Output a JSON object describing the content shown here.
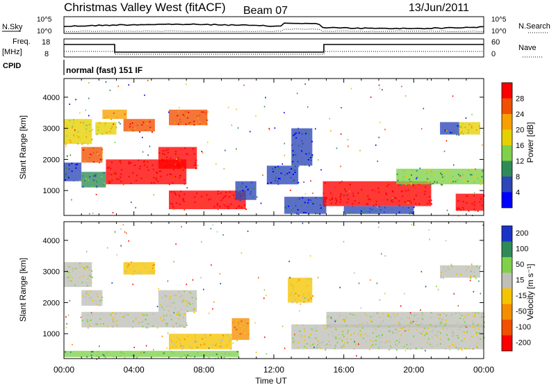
{
  "header": {
    "station": "Christmas Valley West (fitACF)",
    "beam": "Beam 07",
    "date": "13/Jun/2011"
  },
  "panels": {
    "nsky": {
      "label": "N.Sky",
      "ticks": [
        "10^5",
        "10^0"
      ],
      "right_label": "N.Search",
      "right_ticks": [
        "10^5",
        "10^0"
      ]
    },
    "freq": {
      "label_line1": "Freq.",
      "label_line2": "[MHz]",
      "ticks": [
        "18",
        "8"
      ],
      "right_label": "Nave",
      "right_ticks": [
        "60",
        "0"
      ]
    },
    "cpid": {
      "label": "CPID",
      "text": "normal (fast) 151 IF"
    }
  },
  "colors": {
    "power": [
      "#0000ff",
      "#2d46b8",
      "#2e8b57",
      "#7fd14a",
      "#e6d000",
      "#f7a000",
      "#f05000",
      "#ff0000"
    ],
    "velocity": [
      "#1a34c8",
      "#2e8b57",
      "#7fd14a",
      "#bfbfb8",
      "#f5c400",
      "#f58d00",
      "#f05000",
      "#ff0000"
    ]
  },
  "chart_data": [
    {
      "type": "heatmap",
      "name": "power",
      "ylabel": "Slant Range [km]",
      "y_ticks": [
        1000,
        2000,
        3000,
        4000
      ],
      "ylim": [
        200,
        4600
      ],
      "xlim_hours": [
        0,
        24
      ],
      "colorbar": {
        "label": "Power [dB]",
        "ticks": [
          "4",
          "8",
          "12",
          "16",
          "20",
          "24",
          "28"
        ]
      },
      "regions": [
        {
          "t0": 0.0,
          "t1": 1.6,
          "r0": 2500,
          "r1": 3300,
          "level": 4
        },
        {
          "t0": 0.0,
          "t1": 1.0,
          "r0": 1300,
          "r1": 1900,
          "level": 1
        },
        {
          "t0": 1.0,
          "t1": 2.2,
          "r0": 1900,
          "r1": 2400,
          "level": 6
        },
        {
          "t0": 1.8,
          "t1": 3.0,
          "r0": 2800,
          "r1": 3200,
          "level": 4
        },
        {
          "t0": 2.2,
          "t1": 3.6,
          "r0": 3300,
          "r1": 3600,
          "level": 5
        },
        {
          "t0": 3.4,
          "t1": 5.2,
          "r0": 2900,
          "r1": 3300,
          "level": 6
        },
        {
          "t0": 6.0,
          "t1": 8.2,
          "r0": 3100,
          "r1": 3600,
          "level": 6
        },
        {
          "t0": 1.0,
          "t1": 2.4,
          "r0": 1100,
          "r1": 1600,
          "level": 2
        },
        {
          "t0": 2.4,
          "t1": 7.0,
          "r0": 1200,
          "r1": 2000,
          "level": 7
        },
        {
          "t0": 5.4,
          "t1": 7.6,
          "r0": 1700,
          "r1": 2400,
          "level": 7
        },
        {
          "t0": 6.0,
          "t1": 10.4,
          "r0": 400,
          "r1": 1000,
          "level": 7
        },
        {
          "t0": 9.8,
          "t1": 11.0,
          "r0": 700,
          "r1": 1300,
          "level": 1
        },
        {
          "t0": 11.6,
          "t1": 13.4,
          "r0": 1200,
          "r1": 1800,
          "level": 1
        },
        {
          "t0": 13.0,
          "t1": 14.2,
          "r0": 1800,
          "r1": 3000,
          "level": 1
        },
        {
          "t0": 12.6,
          "t1": 15.0,
          "r0": 250,
          "r1": 800,
          "level": 1
        },
        {
          "t0": 14.8,
          "t1": 21.0,
          "r0": 500,
          "r1": 1300,
          "level": 7
        },
        {
          "t0": 19.0,
          "t1": 24.0,
          "r0": 1200,
          "r1": 1700,
          "level": 3
        },
        {
          "t0": 21.5,
          "t1": 22.6,
          "r0": 2800,
          "r1": 3200,
          "level": 1
        },
        {
          "t0": 22.6,
          "t1": 23.8,
          "r0": 2800,
          "r1": 3200,
          "level": 4
        },
        {
          "t0": 22.4,
          "t1": 24.0,
          "r0": 350,
          "r1": 900,
          "level": 7
        },
        {
          "t0": 16.0,
          "t1": 20.0,
          "r0": 250,
          "r1": 500,
          "level": 1
        }
      ]
    },
    {
      "type": "heatmap",
      "name": "velocity",
      "ylabel": "Slant Range [km]",
      "y_ticks": [
        1000,
        2000,
        3000,
        4000
      ],
      "ylim": [
        200,
        4600
      ],
      "xlim_hours": [
        0,
        24
      ],
      "x_ticks": [
        "00:00",
        "04:00",
        "08:00",
        "12:00",
        "16:00",
        "20:00",
        "00:00"
      ],
      "xlabel": "Time UT",
      "colorbar": {
        "label": "Velocity [m s⁻¹]",
        "ticks": [
          "200",
          "100",
          "50",
          "15",
          "-15",
          "-50",
          "-100",
          "-200"
        ]
      },
      "regions": [
        {
          "t0": 0.0,
          "t1": 1.6,
          "r0": 2500,
          "r1": 3300,
          "level": 3
        },
        {
          "t0": 1.0,
          "t1": 2.2,
          "r0": 1900,
          "r1": 2400,
          "level": 3
        },
        {
          "t0": 1.0,
          "t1": 7.0,
          "r0": 1200,
          "r1": 1700,
          "level": 3
        },
        {
          "t0": 3.4,
          "t1": 5.2,
          "r0": 2900,
          "r1": 3300,
          "level": 4
        },
        {
          "t0": 5.4,
          "t1": 7.6,
          "r0": 1700,
          "r1": 2400,
          "level": 3
        },
        {
          "t0": 6.0,
          "t1": 9.6,
          "r0": 500,
          "r1": 1000,
          "level": 4
        },
        {
          "t0": 9.6,
          "t1": 10.6,
          "r0": 800,
          "r1": 1500,
          "level": 5
        },
        {
          "t0": 12.8,
          "t1": 14.2,
          "r0": 2000,
          "r1": 2800,
          "level": 4
        },
        {
          "t0": 13.0,
          "t1": 24.0,
          "r0": 500,
          "r1": 1300,
          "level": 3
        },
        {
          "t0": 15.0,
          "t1": 24.0,
          "r0": 1200,
          "r1": 1700,
          "level": 3
        },
        {
          "t0": 21.5,
          "t1": 23.8,
          "r0": 2800,
          "r1": 3200,
          "level": 3
        },
        {
          "t0": 0.0,
          "t1": 10.0,
          "r0": 250,
          "r1": 450,
          "level": 2
        }
      ]
    }
  ]
}
